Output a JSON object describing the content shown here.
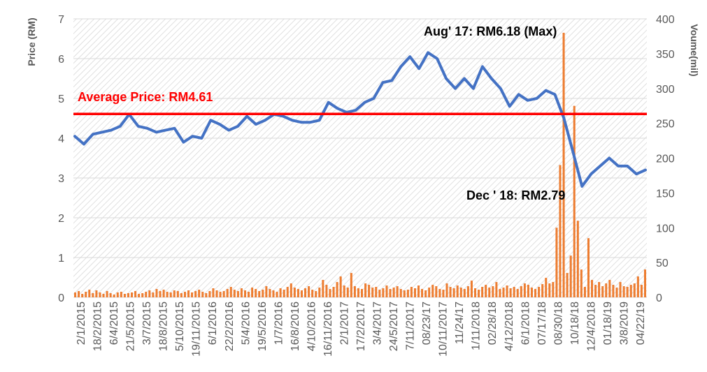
{
  "chart_data": {
    "type": "line",
    "title": "",
    "ylabel_left": "Price (RM)",
    "ylabel_right": "Voume(mil)",
    "ylim_left": [
      0,
      7
    ],
    "yticks_left": [
      "0",
      "1",
      "2",
      "3",
      "4",
      "5",
      "6",
      "7"
    ],
    "ylim_right": [
      0,
      400
    ],
    "yticks_right": [
      "0",
      "50",
      "100",
      "150",
      "200",
      "250",
      "300",
      "350",
      "400"
    ],
    "x_tick_labels": [
      "2/1/2015",
      "18/2/2015",
      "6/4/2015",
      "21/5/2015",
      "3/7/2015",
      "18/8/2015",
      "5/10/2015",
      "19/11/2015",
      "6/1/2016",
      "22/2/2016",
      "5/4/2016",
      "19/5/2016",
      "1/7/2016",
      "16/8/2016",
      "4/10/2016",
      "16/11/2016",
      "2/1/2017",
      "17/2/2017",
      "3/4/2017",
      "24/5/2017",
      "7/11/2017",
      "08/23/17",
      "10/11/2017",
      "11/24/17",
      "1/11/2018",
      "02/28/18",
      "4/12/2018",
      "6/1/2018",
      "07/17/18",
      "08/30/18",
      "10/18/18",
      "12/4/2018",
      "01/18/19",
      "3/8/2019",
      "04/22/19"
    ],
    "average": {
      "value": 4.61,
      "label": "Average Price: RM4.61",
      "color": "#ff0000"
    },
    "annotations": [
      {
        "text": "Aug' 17: RM6.18 (Max)"
      },
      {
        "text": "Dec ' 18: RM2.79"
      }
    ],
    "series": [
      {
        "name": "Price",
        "axis": "left",
        "color": "#4472c4",
        "values": [
          4.05,
          3.85,
          4.1,
          4.15,
          4.2,
          4.3,
          4.6,
          4.3,
          4.25,
          4.15,
          4.2,
          4.25,
          3.9,
          4.05,
          4.0,
          4.45,
          4.35,
          4.2,
          4.3,
          4.55,
          4.35,
          4.45,
          4.6,
          4.55,
          4.45,
          4.4,
          4.4,
          4.45,
          4.9,
          4.75,
          4.65,
          4.7,
          4.9,
          5.0,
          5.4,
          5.45,
          5.8,
          6.05,
          5.75,
          6.15,
          6.0,
          5.5,
          5.25,
          5.5,
          5.25,
          5.8,
          5.5,
          5.25,
          4.8,
          5.1,
          4.95,
          5.0,
          5.2,
          5.1,
          4.5,
          3.65,
          2.79,
          3.1,
          3.3,
          3.5,
          3.3,
          3.3,
          3.1,
          3.2
        ]
      },
      {
        "name": "Volume",
        "axis": "right",
        "color": "#ed7d31",
        "values": [
          7,
          9,
          5,
          8,
          11,
          6,
          10,
          7,
          5,
          9,
          6,
          4,
          7,
          8,
          5,
          6,
          7,
          9,
          5,
          6,
          8,
          10,
          7,
          12,
          9,
          11,
          8,
          7,
          10,
          9,
          6,
          8,
          10,
          7,
          9,
          11,
          8,
          6,
          9,
          13,
          10,
          8,
          9,
          12,
          15,
          11,
          9,
          13,
          10,
          8,
          14,
          12,
          9,
          11,
          16,
          12,
          10,
          8,
          13,
          11,
          15,
          20,
          14,
          12,
          10,
          13,
          16,
          11,
          9,
          14,
          25,
          18,
          12,
          15,
          22,
          30,
          17,
          14,
          35,
          16,
          13,
          12,
          20,
          18,
          14,
          15,
          11,
          13,
          17,
          12,
          14,
          16,
          12,
          10,
          11,
          15,
          13,
          17,
          12,
          10,
          14,
          18,
          16,
          12,
          11,
          20,
          15,
          13,
          17,
          14,
          12,
          16,
          24,
          13,
          11,
          15,
          18,
          14,
          16,
          22,
          12,
          14,
          17,
          13,
          15,
          12,
          16,
          20,
          18,
          14,
          12,
          15,
          19,
          28,
          20,
          22,
          100,
          190,
          380,
          35,
          60,
          275,
          110,
          40,
          15,
          85,
          25,
          18,
          22,
          16,
          20,
          25,
          18,
          14,
          22,
          16,
          15,
          18,
          20,
          30,
          18,
          40
        ]
      }
    ]
  }
}
